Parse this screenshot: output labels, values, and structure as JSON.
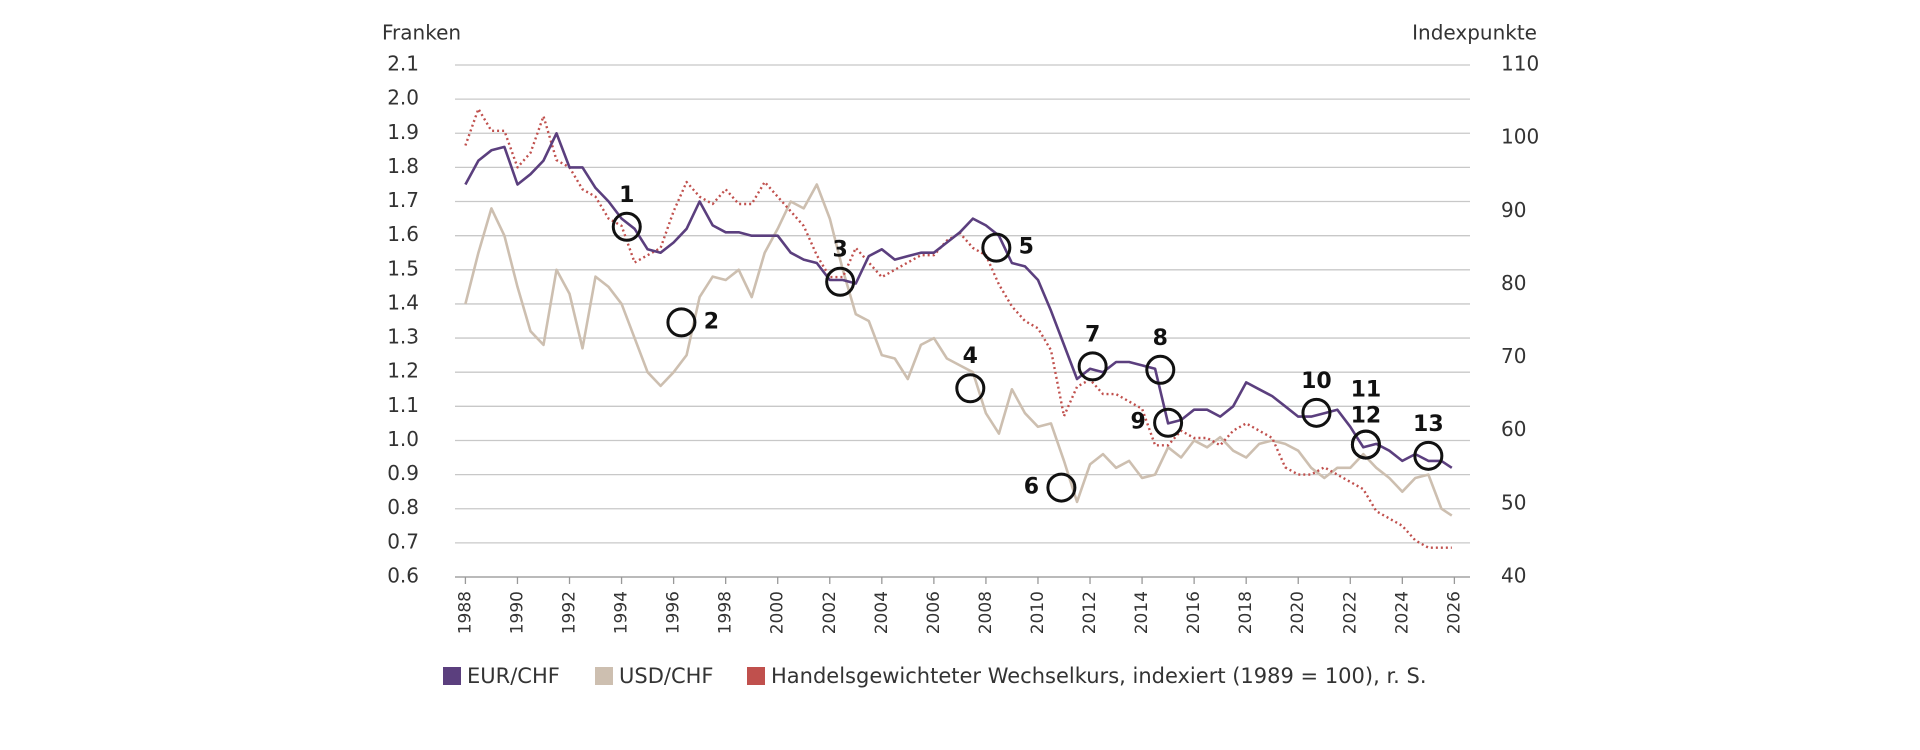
{
  "chart_data": {
    "type": "line",
    "y_label": "Franken",
    "y2_label": "Indexpunkte",
    "xlim": [
      1987.6,
      2026.6
    ],
    "xticks": [
      1988,
      1990,
      1992,
      1994,
      1996,
      1998,
      2000,
      2002,
      2004,
      2006,
      2008,
      2010,
      2012,
      2014,
      2016,
      2018,
      2020,
      2022,
      2024,
      2026
    ],
    "ylim": [
      0.6,
      2.1
    ],
    "yticks": [
      {
        "value": 0.6,
        "label": "0.6"
      },
      {
        "value": 0.7,
        "label": "0.7"
      },
      {
        "value": 0.8,
        "label": "0.8"
      },
      {
        "value": 0.9,
        "label": "0.9"
      },
      {
        "value": 1.0,
        "label": "1.0"
      },
      {
        "value": 1.1,
        "label": "1.1"
      },
      {
        "value": 1.2,
        "label": "1.2"
      },
      {
        "value": 1.3,
        "label": "1.3"
      },
      {
        "value": 1.4,
        "label": "1.4"
      },
      {
        "value": 1.5,
        "label": "1.5"
      },
      {
        "value": 1.6,
        "label": "1.6"
      },
      {
        "value": 1.7,
        "label": "1.7"
      },
      {
        "value": 1.8,
        "label": "1.8"
      },
      {
        "value": 1.9,
        "label": "1.9"
      },
      {
        "value": 2.0,
        "label": "2.0"
      },
      {
        "value": 2.1,
        "label": "2.1"
      }
    ],
    "y2lim": [
      40,
      110
    ],
    "y2ticks": [
      40,
      50,
      60,
      70,
      80,
      90,
      100,
      110
    ],
    "grid": true,
    "x": [
      1988.0,
      1988.5,
      1989.0,
      1989.5,
      1990.0,
      1990.5,
      1991.0,
      1991.5,
      1992.0,
      1992.5,
      1993.0,
      1993.5,
      1994.0,
      1994.5,
      1995.0,
      1995.5,
      1996.0,
      1996.5,
      1997.0,
      1997.5,
      1998.0,
      1998.5,
      1999.0,
      1999.5,
      2000.0,
      2000.5,
      2001.0,
      2001.5,
      2002.0,
      2002.5,
      2003.0,
      2003.5,
      2004.0,
      2004.5,
      2005.0,
      2005.5,
      2006.0,
      2006.5,
      2007.0,
      2007.5,
      2008.0,
      2008.5,
      2009.0,
      2009.5,
      2010.0,
      2010.5,
      2011.0,
      2011.5,
      2012.0,
      2012.5,
      2013.0,
      2013.5,
      2014.0,
      2014.5,
      2015.0,
      2015.5,
      2016.0,
      2016.5,
      2017.0,
      2017.5,
      2018.0,
      2018.5,
      2019.0,
      2019.5,
      2020.0,
      2020.5,
      2021.0,
      2021.5,
      2022.0,
      2022.5,
      2023.0,
      2023.5,
      2024.0,
      2024.5,
      2025.0,
      2025.5,
      2025.9
    ],
    "series": [
      {
        "name": "EUR/CHF",
        "color": "#5b3f7e",
        "values": [
          1.75,
          1.82,
          1.85,
          1.86,
          1.75,
          1.78,
          1.82,
          1.9,
          1.8,
          1.8,
          1.74,
          1.7,
          1.65,
          1.62,
          1.56,
          1.55,
          1.58,
          1.62,
          1.7,
          1.63,
          1.61,
          1.61,
          1.6,
          1.6,
          1.6,
          1.55,
          1.53,
          1.52,
          1.47,
          1.47,
          1.46,
          1.54,
          1.56,
          1.53,
          1.54,
          1.55,
          1.55,
          1.58,
          1.61,
          1.65,
          1.63,
          1.6,
          1.52,
          1.51,
          1.47,
          1.38,
          1.28,
          1.18,
          1.21,
          1.2,
          1.23,
          1.23,
          1.22,
          1.21,
          1.05,
          1.06,
          1.09,
          1.09,
          1.07,
          1.1,
          1.17,
          1.15,
          1.13,
          1.1,
          1.07,
          1.07,
          1.08,
          1.09,
          1.04,
          0.98,
          0.99,
          0.97,
          0.94,
          0.96,
          0.94,
          0.94,
          0.92
        ]
      },
      {
        "name": "USD/CHF",
        "color": "#cdbfb0",
        "values": [
          1.4,
          1.55,
          1.68,
          1.6,
          1.45,
          1.32,
          1.28,
          1.5,
          1.43,
          1.27,
          1.48,
          1.45,
          1.4,
          1.3,
          1.2,
          1.16,
          1.2,
          1.25,
          1.42,
          1.48,
          1.47,
          1.5,
          1.42,
          1.55,
          1.62,
          1.7,
          1.68,
          1.75,
          1.65,
          1.5,
          1.37,
          1.35,
          1.25,
          1.24,
          1.18,
          1.28,
          1.3,
          1.24,
          1.22,
          1.2,
          1.08,
          1.02,
          1.15,
          1.08,
          1.04,
          1.05,
          0.94,
          0.82,
          0.93,
          0.96,
          0.92,
          0.94,
          0.89,
          0.9,
          0.98,
          0.95,
          1.0,
          0.98,
          1.01,
          0.97,
          0.95,
          0.99,
          1.0,
          0.99,
          0.97,
          0.92,
          0.89,
          0.92,
          0.92,
          0.96,
          0.92,
          0.89,
          0.85,
          0.89,
          0.9,
          0.8,
          0.78
        ]
      },
      {
        "name": "Handelsgewichteter Wechselkurs, indexiert (1989 = 100), r. S.",
        "color": "#c0504d",
        "axis": "y2",
        "dashed": true,
        "values": [
          99,
          104,
          101,
          101,
          96,
          98,
          103,
          97,
          96,
          93,
          92,
          89,
          88,
          83,
          84,
          85,
          90,
          94,
          92,
          91,
          93,
          91,
          91,
          94,
          92,
          90,
          88,
          84,
          81,
          81,
          85,
          83,
          81,
          82,
          83,
          84,
          84,
          86,
          87,
          85,
          84,
          80,
          77,
          75,
          74,
          71,
          62,
          66,
          67,
          65,
          65,
          64,
          63,
          58,
          58,
          60,
          59,
          59,
          58,
          60,
          61,
          60,
          59,
          55,
          54,
          54,
          55,
          54,
          53,
          52,
          49,
          48,
          47,
          45,
          44,
          44,
          44
        ]
      }
    ],
    "annotations": [
      {
        "label": "1",
        "x": 1994.2,
        "y": 1.626
      },
      {
        "label": "2",
        "x": 1996.3,
        "y": 1.346
      },
      {
        "label": "3",
        "x": 2002.4,
        "y": 1.465
      },
      {
        "label": "4",
        "x": 2007.4,
        "y": 1.153
      },
      {
        "label": "5",
        "x": 2008.4,
        "y": 1.565
      },
      {
        "label": "6",
        "x": 2010.9,
        "y": 0.862
      },
      {
        "label": "7",
        "x": 2012.1,
        "y": 1.217
      },
      {
        "label": "8",
        "x": 2014.7,
        "y": 1.207
      },
      {
        "label": "9",
        "x": 2015.0,
        "y": 1.052
      },
      {
        "label": "10",
        "x": 2020.7,
        "y": 1.081
      },
      {
        "label": "11",
        "x": 2022.6,
        "y": 0.988
      },
      {
        "label": "12",
        "x": 2022.6,
        "y": 0.988
      },
      {
        "label": "13",
        "x": 2025.0,
        "y": 0.955
      }
    ]
  }
}
